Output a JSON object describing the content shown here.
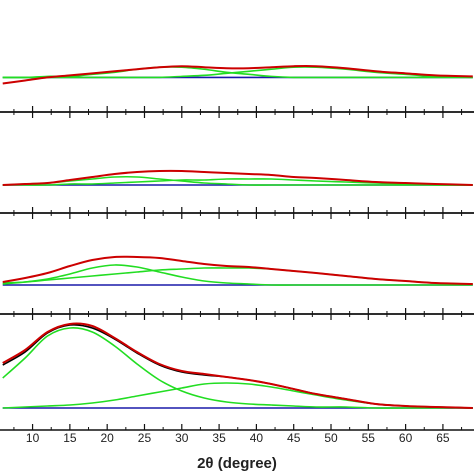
{
  "chart_data": [
    {
      "type": "line",
      "xlim": [
        5.5,
        69.3
      ],
      "ylim": [
        -34,
        78
      ],
      "x": [
        6,
        9,
        12,
        15,
        18,
        21,
        24,
        27,
        30,
        33,
        36,
        39,
        42,
        45,
        48,
        52,
        56,
        60,
        64,
        69
      ],
      "series": [
        {
          "color": "#1a1aaa",
          "values": [
            0,
            0,
            0,
            0,
            0,
            0,
            0,
            0,
            0,
            0,
            0,
            0,
            0,
            0,
            0,
            0,
            0,
            0,
            0,
            0
          ]
        },
        {
          "color": "#22dd22",
          "values": [
            0,
            0,
            1,
            1,
            3,
            5,
            8,
            10,
            10,
            8,
            5,
            3,
            1,
            0,
            0,
            0,
            0,
            0,
            0,
            0
          ]
        },
        {
          "color": "#22dd22",
          "values": [
            0,
            0,
            0,
            0,
            0,
            0,
            0,
            0,
            1,
            2,
            4,
            6,
            8,
            10,
            10,
            8,
            5,
            3,
            1,
            0
          ]
        },
        {
          "color": "#cc0000",
          "values": [
            -6,
            -3,
            0,
            2,
            4,
            6,
            8,
            10,
            11,
            10,
            9,
            9,
            10,
            11,
            11,
            9,
            6,
            4,
            2,
            1
          ]
        }
      ]
    },
    {
      "type": "line",
      "xlim": [
        5.5,
        69.3
      ],
      "ylim": [
        -28,
        73
      ],
      "x": [
        6,
        9,
        12,
        15,
        18,
        21,
        24,
        27,
        30,
        33,
        36,
        39,
        42,
        45,
        48,
        52,
        56,
        60,
        64,
        69
      ],
      "series": [
        {
          "color": "#1a1aaa",
          "values": [
            0,
            0,
            0,
            0,
            0,
            0,
            0,
            0,
            0,
            0,
            0,
            0,
            0,
            0,
            0,
            0,
            0,
            0,
            0,
            0
          ]
        },
        {
          "color": "#22dd22",
          "values": [
            0,
            1,
            2,
            4,
            6,
            8,
            8,
            6,
            4,
            2,
            1,
            0,
            0,
            0,
            0,
            0,
            0,
            0,
            0,
            0
          ]
        },
        {
          "color": "#22dd22",
          "values": [
            0,
            0,
            0,
            1,
            1,
            2,
            3,
            4,
            5,
            5,
            6,
            6,
            6,
            5,
            4,
            3,
            2,
            1,
            0,
            0
          ]
        },
        {
          "color": "#cc0000",
          "values": [
            0,
            1,
            2,
            5,
            8,
            11,
            13,
            14,
            14,
            13,
            12,
            11,
            10,
            8,
            7,
            5,
            3,
            2,
            1,
            0
          ]
        }
      ]
    },
    {
      "type": "line",
      "xlim": [
        5.5,
        69.3
      ],
      "ylim": [
        -29,
        72
      ],
      "x": [
        6,
        9,
        12,
        15,
        18,
        21,
        24,
        27,
        30,
        33,
        36,
        39,
        42,
        45,
        48,
        52,
        56,
        60,
        64,
        69
      ],
      "series": [
        {
          "color": "#1a1aaa",
          "values": [
            0,
            0,
            0,
            0,
            0,
            0,
            0,
            0,
            0,
            0,
            0,
            0,
            0,
            0,
            0,
            0,
            0,
            0,
            0,
            0
          ]
        },
        {
          "color": "#22dd22",
          "values": [
            1,
            3,
            6,
            11,
            17,
            20,
            18,
            13,
            8,
            4,
            2,
            1,
            0,
            0,
            0,
            0,
            0,
            0,
            0,
            0
          ]
        },
        {
          "color": "#22dd22",
          "values": [
            2,
            3,
            5,
            7,
            9,
            11,
            13,
            15,
            16,
            17,
            17,
            17,
            16,
            14,
            12,
            9,
            6,
            4,
            2,
            1
          ]
        },
        {
          "color": "#cc0000",
          "values": [
            3,
            7,
            12,
            19,
            25,
            28,
            28,
            27,
            24,
            21,
            19,
            18,
            16,
            14,
            12,
            9,
            6,
            4,
            2,
            1
          ]
        }
      ]
    },
    {
      "type": "line",
      "xlim": [
        5.5,
        69.3
      ],
      "ylim": [
        -22,
        94
      ],
      "xlabel": "2θ (degree)",
      "xticks": [
        10,
        15,
        20,
        25,
        30,
        35,
        40,
        45,
        50,
        55,
        60,
        65
      ],
      "xticks_minor": [
        7.5,
        12.5,
        17.5,
        22.5,
        27.5,
        32.5,
        37.5,
        42.5,
        47.5,
        52.5,
        57.5,
        62.5,
        67.5
      ],
      "x": [
        6,
        9,
        12,
        15,
        18,
        21,
        24,
        27,
        30,
        33,
        36,
        39,
        42,
        45,
        48,
        52,
        56,
        60,
        64,
        69
      ],
      "series": [
        {
          "color": "#1a1aaa",
          "values": [
            0,
            0,
            0,
            0,
            0,
            0,
            0,
            0,
            0,
            0,
            0,
            0,
            0,
            0,
            0,
            0,
            0,
            0,
            0,
            0
          ]
        },
        {
          "color": "#22dd22",
          "values": [
            30,
            50,
            72,
            80,
            76,
            62,
            44,
            28,
            17,
            10,
            6,
            4,
            3,
            2,
            1,
            1,
            0,
            0,
            0,
            0
          ]
        },
        {
          "color": "#22dd22",
          "values": [
            0,
            1,
            2,
            3,
            5,
            8,
            12,
            16,
            20,
            24,
            25,
            24,
            21,
            17,
            13,
            8,
            4,
            2,
            1,
            0
          ]
        },
        {
          "color": "#000000",
          "values": [
            43,
            56,
            75,
            83,
            80,
            69,
            55,
            43,
            36,
            33,
            31,
            28,
            24,
            19,
            14,
            9,
            4,
            2,
            1,
            0
          ]
        },
        {
          "color": "#cc0000",
          "values": [
            45,
            58,
            76,
            84,
            82,
            70,
            56,
            44,
            37,
            34,
            31,
            28,
            24,
            19,
            14,
            9,
            4,
            2,
            1,
            0
          ]
        }
      ]
    }
  ]
}
